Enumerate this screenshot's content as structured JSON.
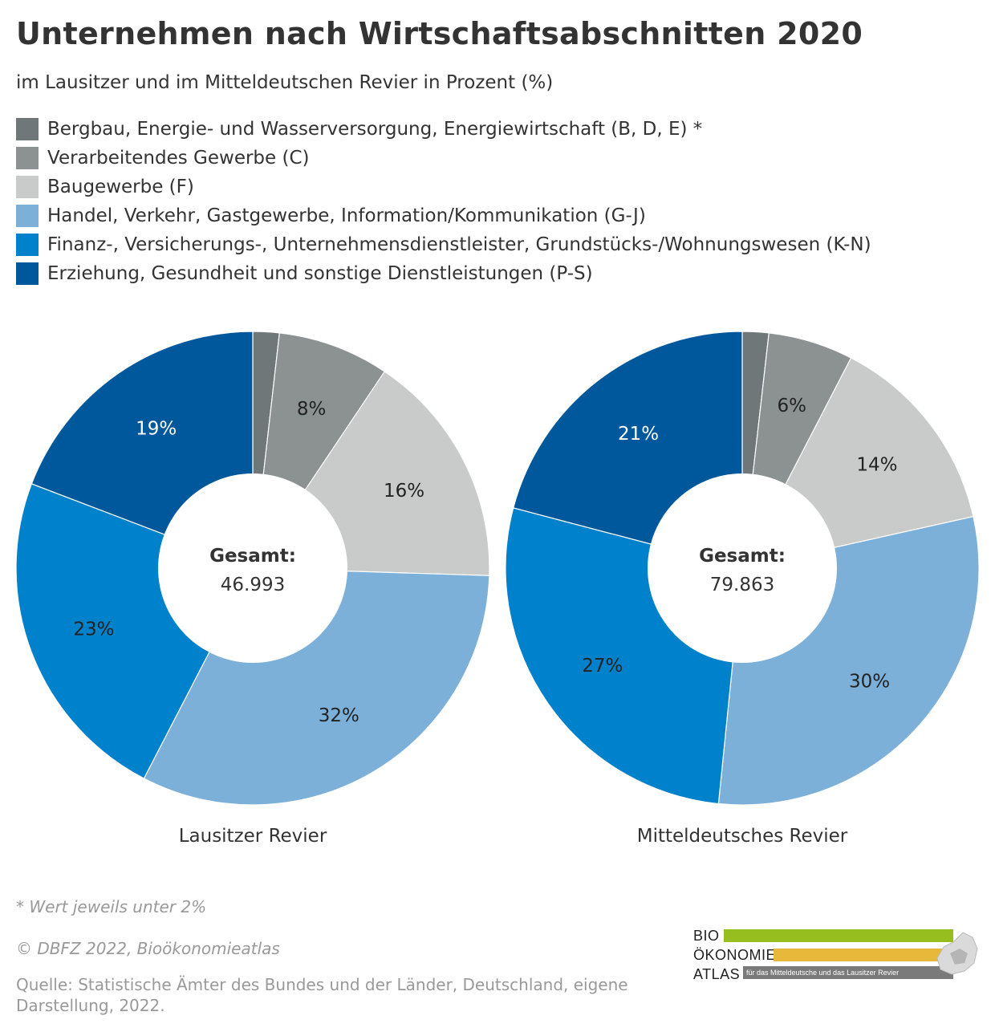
{
  "title": "Unternehmen nach Wirtschaftsabschnitten 2020",
  "subtitle": "im Lausitzer und im Mitteldeutschen Revier in Prozent (%)",
  "legend": [
    {
      "label": "Bergbau, Energie- und Wasserversorgung, Energiewirtschaft (B, D, E) *",
      "color": "#6f7778"
    },
    {
      "label": "Verarbeitendes Gewerbe (C)",
      "color": "#8c9191"
    },
    {
      "label": "Baugewerbe (F)",
      "color": "#c9caca"
    },
    {
      "label": "Handel, Verkehr, Gastgewerbe, Information/Kommunikation (G-J)",
      "color": "#7cb0d8"
    },
    {
      "label": "Finanz-, Versicherungs-, Unternehmensdienstleister, Grundstücks-/Wohnungswesen (K-N)",
      "color": "#0081cb"
    },
    {
      "label": "Erziehung, Gesundheit und sonstige Dienstleistungen (P-S)",
      "color": "#00589c"
    }
  ],
  "chart_data": [
    {
      "type": "pie",
      "title": "Lausitzer Revier",
      "center_label": "Gesamt:",
      "center_value": "46.993",
      "categories": [
        "Bergbau, Energie- und Wasserversorgung, Energiewirtschaft (B, D, E) *",
        "Verarbeitendes Gewerbe (C)",
        "Baugewerbe (F)",
        "Handel, Verkehr, Gastgewerbe, Information/Kommunikation (G-J)",
        "Finanz-, Versicherungs-, Unternehmensdienstleister, Grundstücks-/Wohnungswesen (K-N)",
        "Erziehung, Gesundheit und sonstige Dienstleistungen (P-S)"
      ],
      "values": [
        1.8,
        7.6,
        16.1,
        32.1,
        23.2,
        19.2
      ],
      "labels": [
        "",
        "8%",
        "16%",
        "32%",
        "23%",
        "19%"
      ],
      "label_colors": [
        "#222222",
        "#222222",
        "#222222",
        "#222222",
        "#222222",
        "#ffffff"
      ]
    },
    {
      "type": "pie",
      "title": "Mitteldeutsches Revier",
      "center_label": "Gesamt:",
      "center_value": "79.863",
      "categories": [
        "Bergbau, Energie- und Wasserversorgung, Energiewirtschaft (B, D, E) *",
        "Verarbeitendes Gewerbe (C)",
        "Baugewerbe (F)",
        "Handel, Verkehr, Gastgewerbe, Information/Kommunikation (G-J)",
        "Finanz-, Versicherungs-, Unternehmensdienstleister, Grundstücks-/Wohnungswesen (K-N)",
        "Erziehung, Gesundheit und sonstige Dienstleistungen (P-S)"
      ],
      "values": [
        1.8,
        5.8,
        13.9,
        30.1,
        27.5,
        20.9
      ],
      "labels": [
        "",
        "6%",
        "14%",
        "30%",
        "27%",
        "21%"
      ],
      "label_colors": [
        "#222222",
        "#222222",
        "#222222",
        "#222222",
        "#222222",
        "#ffffff"
      ]
    }
  ],
  "footnote": "* Wert jeweils unter 2%",
  "copyright": "© DBFZ 2022, Bioökonomieatlas",
  "source": "Quelle: Statistische Ämter des Bundes und der Länder, Deutschland, eigene Darstellung, 2022.",
  "logo": {
    "line1": "BIO",
    "line2": "ÖKONOMIE",
    "line3": "ATLAS",
    "tagline": "für das Mitteldeutsche und das Lausitzer Revier",
    "bar1_color": "#96be1e",
    "bar2_color": "#e8b83a",
    "bar3_color": "#7a7a7a"
  }
}
